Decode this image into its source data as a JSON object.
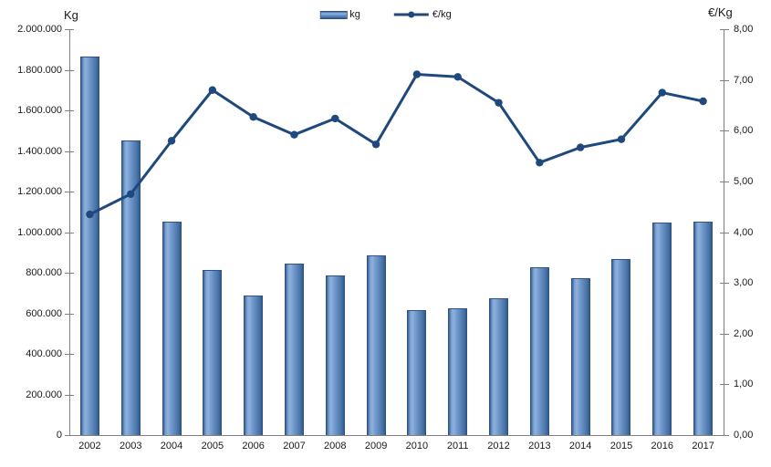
{
  "chart_data": {
    "type": "combo_bar_line",
    "categories": [
      "2002",
      "2003",
      "2004",
      "2005",
      "2006",
      "2007",
      "2008",
      "2009",
      "2010",
      "2011",
      "2012",
      "2013",
      "2014",
      "2015",
      "2016",
      "2017"
    ],
    "series": [
      {
        "name": "kg",
        "type": "bar",
        "axis": "left",
        "values": [
          1865000,
          1452000,
          1050000,
          812000,
          688000,
          844000,
          785000,
          885000,
          616000,
          626000,
          676000,
          825000,
          772000,
          866000,
          1046000,
          1052000
        ]
      },
      {
        "name": "€/kg",
        "type": "line",
        "axis": "right",
        "values": [
          4.35,
          4.75,
          5.8,
          6.8,
          6.27,
          5.92,
          6.24,
          5.73,
          7.11,
          7.06,
          6.55,
          5.37,
          5.67,
          5.83,
          6.75,
          6.58
        ]
      }
    ],
    "left_axis": {
      "title": "Kg",
      "range": [
        0,
        2000000
      ],
      "tick_interval": 200000,
      "tick_labels": [
        "2.000.000",
        "1.800.000",
        "1.600.000",
        "1.400.000",
        "1.200.000",
        "1.000.000",
        "800.000",
        "600.000",
        "400.000",
        "200.000",
        "0"
      ]
    },
    "right_axis": {
      "title": "€/Kg",
      "range": [
        0,
        8
      ],
      "tick_interval": 1,
      "tick_labels": [
        "8,00",
        "7,00",
        "6,00",
        "5,00",
        "4,00",
        "3,00",
        "2,00",
        "1,00",
        "0,00"
      ]
    },
    "legend": {
      "position": "top-center",
      "entries": [
        "kg",
        "€/kg"
      ]
    },
    "grid": false,
    "colors": {
      "bar_fill": "#6790C4",
      "bar_highlight": "#8FB0DC",
      "bar_border": "#2D5286",
      "line": "#1F497D",
      "axis": "#808080",
      "text": "#1A1A1A"
    }
  }
}
